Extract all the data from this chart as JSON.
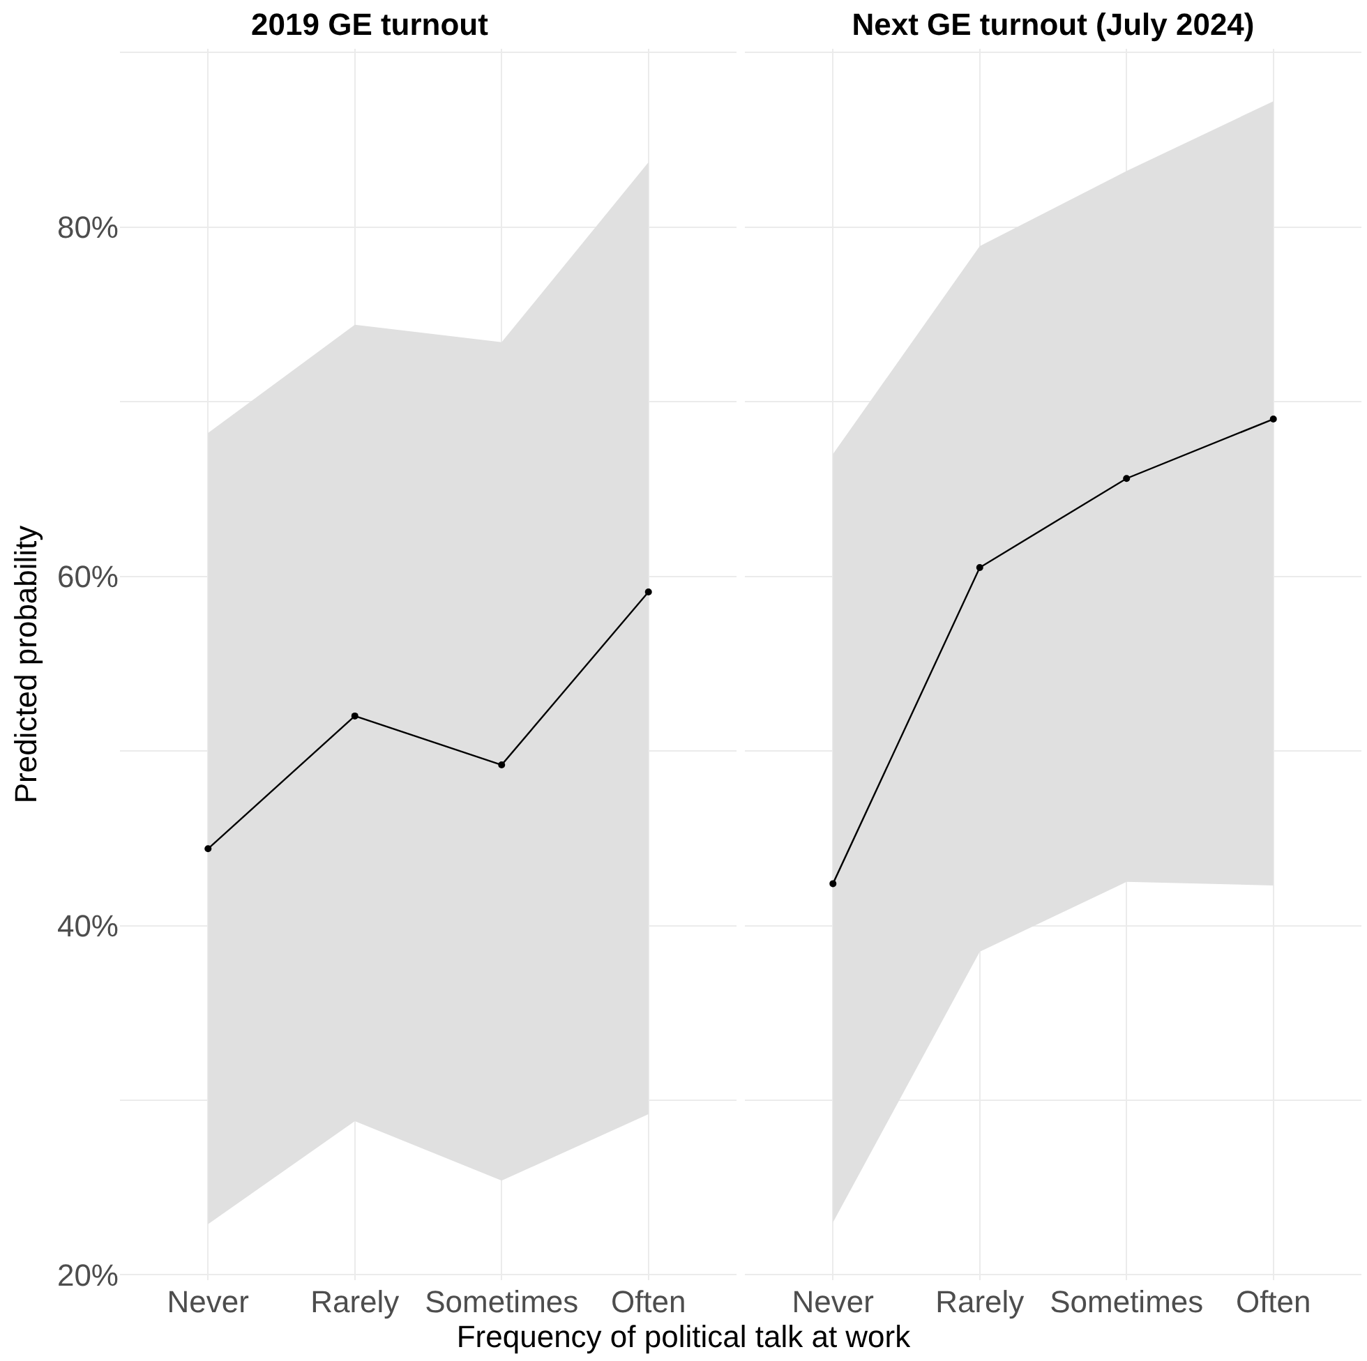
{
  "chart_data": [
    {
      "type": "line",
      "title": "2019 GE turnout",
      "xlabel": "Frequency of political talk at work",
      "ylabel": "Predicted probability",
      "categories": [
        "Never",
        "Rarely",
        "Sometimes",
        "Often"
      ],
      "series": [
        {
          "color": "#000000",
          "values": [
            44.4,
            52.0,
            49.2,
            59.1
          ],
          "lower": [
            22.9,
            28.8,
            25.4,
            29.2
          ],
          "upper": [
            68.2,
            74.4,
            73.4,
            83.7
          ]
        }
      ],
      "ylim": [
        19.7,
        90.2
      ],
      "yticks": [
        {
          "value": 20,
          "label": "20%"
        },
        {
          "value": 30,
          "label": null
        },
        {
          "value": 40,
          "label": "40%"
        },
        {
          "value": 50,
          "label": null
        },
        {
          "value": 60,
          "label": "60%"
        },
        {
          "value": 70,
          "label": null
        },
        {
          "value": 80,
          "label": "80%"
        },
        {
          "value": 90,
          "label": null
        }
      ],
      "grid": true,
      "marker": "circle",
      "line_style": "solid"
    },
    {
      "type": "line",
      "title": "Next GE turnout (July 2024)",
      "categories": [
        "Never",
        "Rarely",
        "Sometimes",
        "Often"
      ],
      "series": [
        {
          "color": "#000000",
          "values": [
            42.4,
            60.5,
            65.6,
            69.0
          ],
          "lower": [
            23.0,
            38.5,
            42.5,
            42.3
          ],
          "upper": [
            67.0,
            78.9,
            83.2,
            87.2
          ]
        }
      ],
      "ylim": [
        19.7,
        90.2
      ],
      "yticks": [
        {
          "value": 20,
          "label": null
        },
        {
          "value": 30,
          "label": null
        },
        {
          "value": 40,
          "label": null
        },
        {
          "value": 50,
          "label": null
        },
        {
          "value": 60,
          "label": null
        },
        {
          "value": 70,
          "label": null
        },
        {
          "value": 80,
          "label": null
        },
        {
          "value": 90,
          "label": null
        }
      ],
      "grid": true,
      "marker": "circle",
      "line_style": "solid",
      "tick_labels": "x"
    }
  ]
}
